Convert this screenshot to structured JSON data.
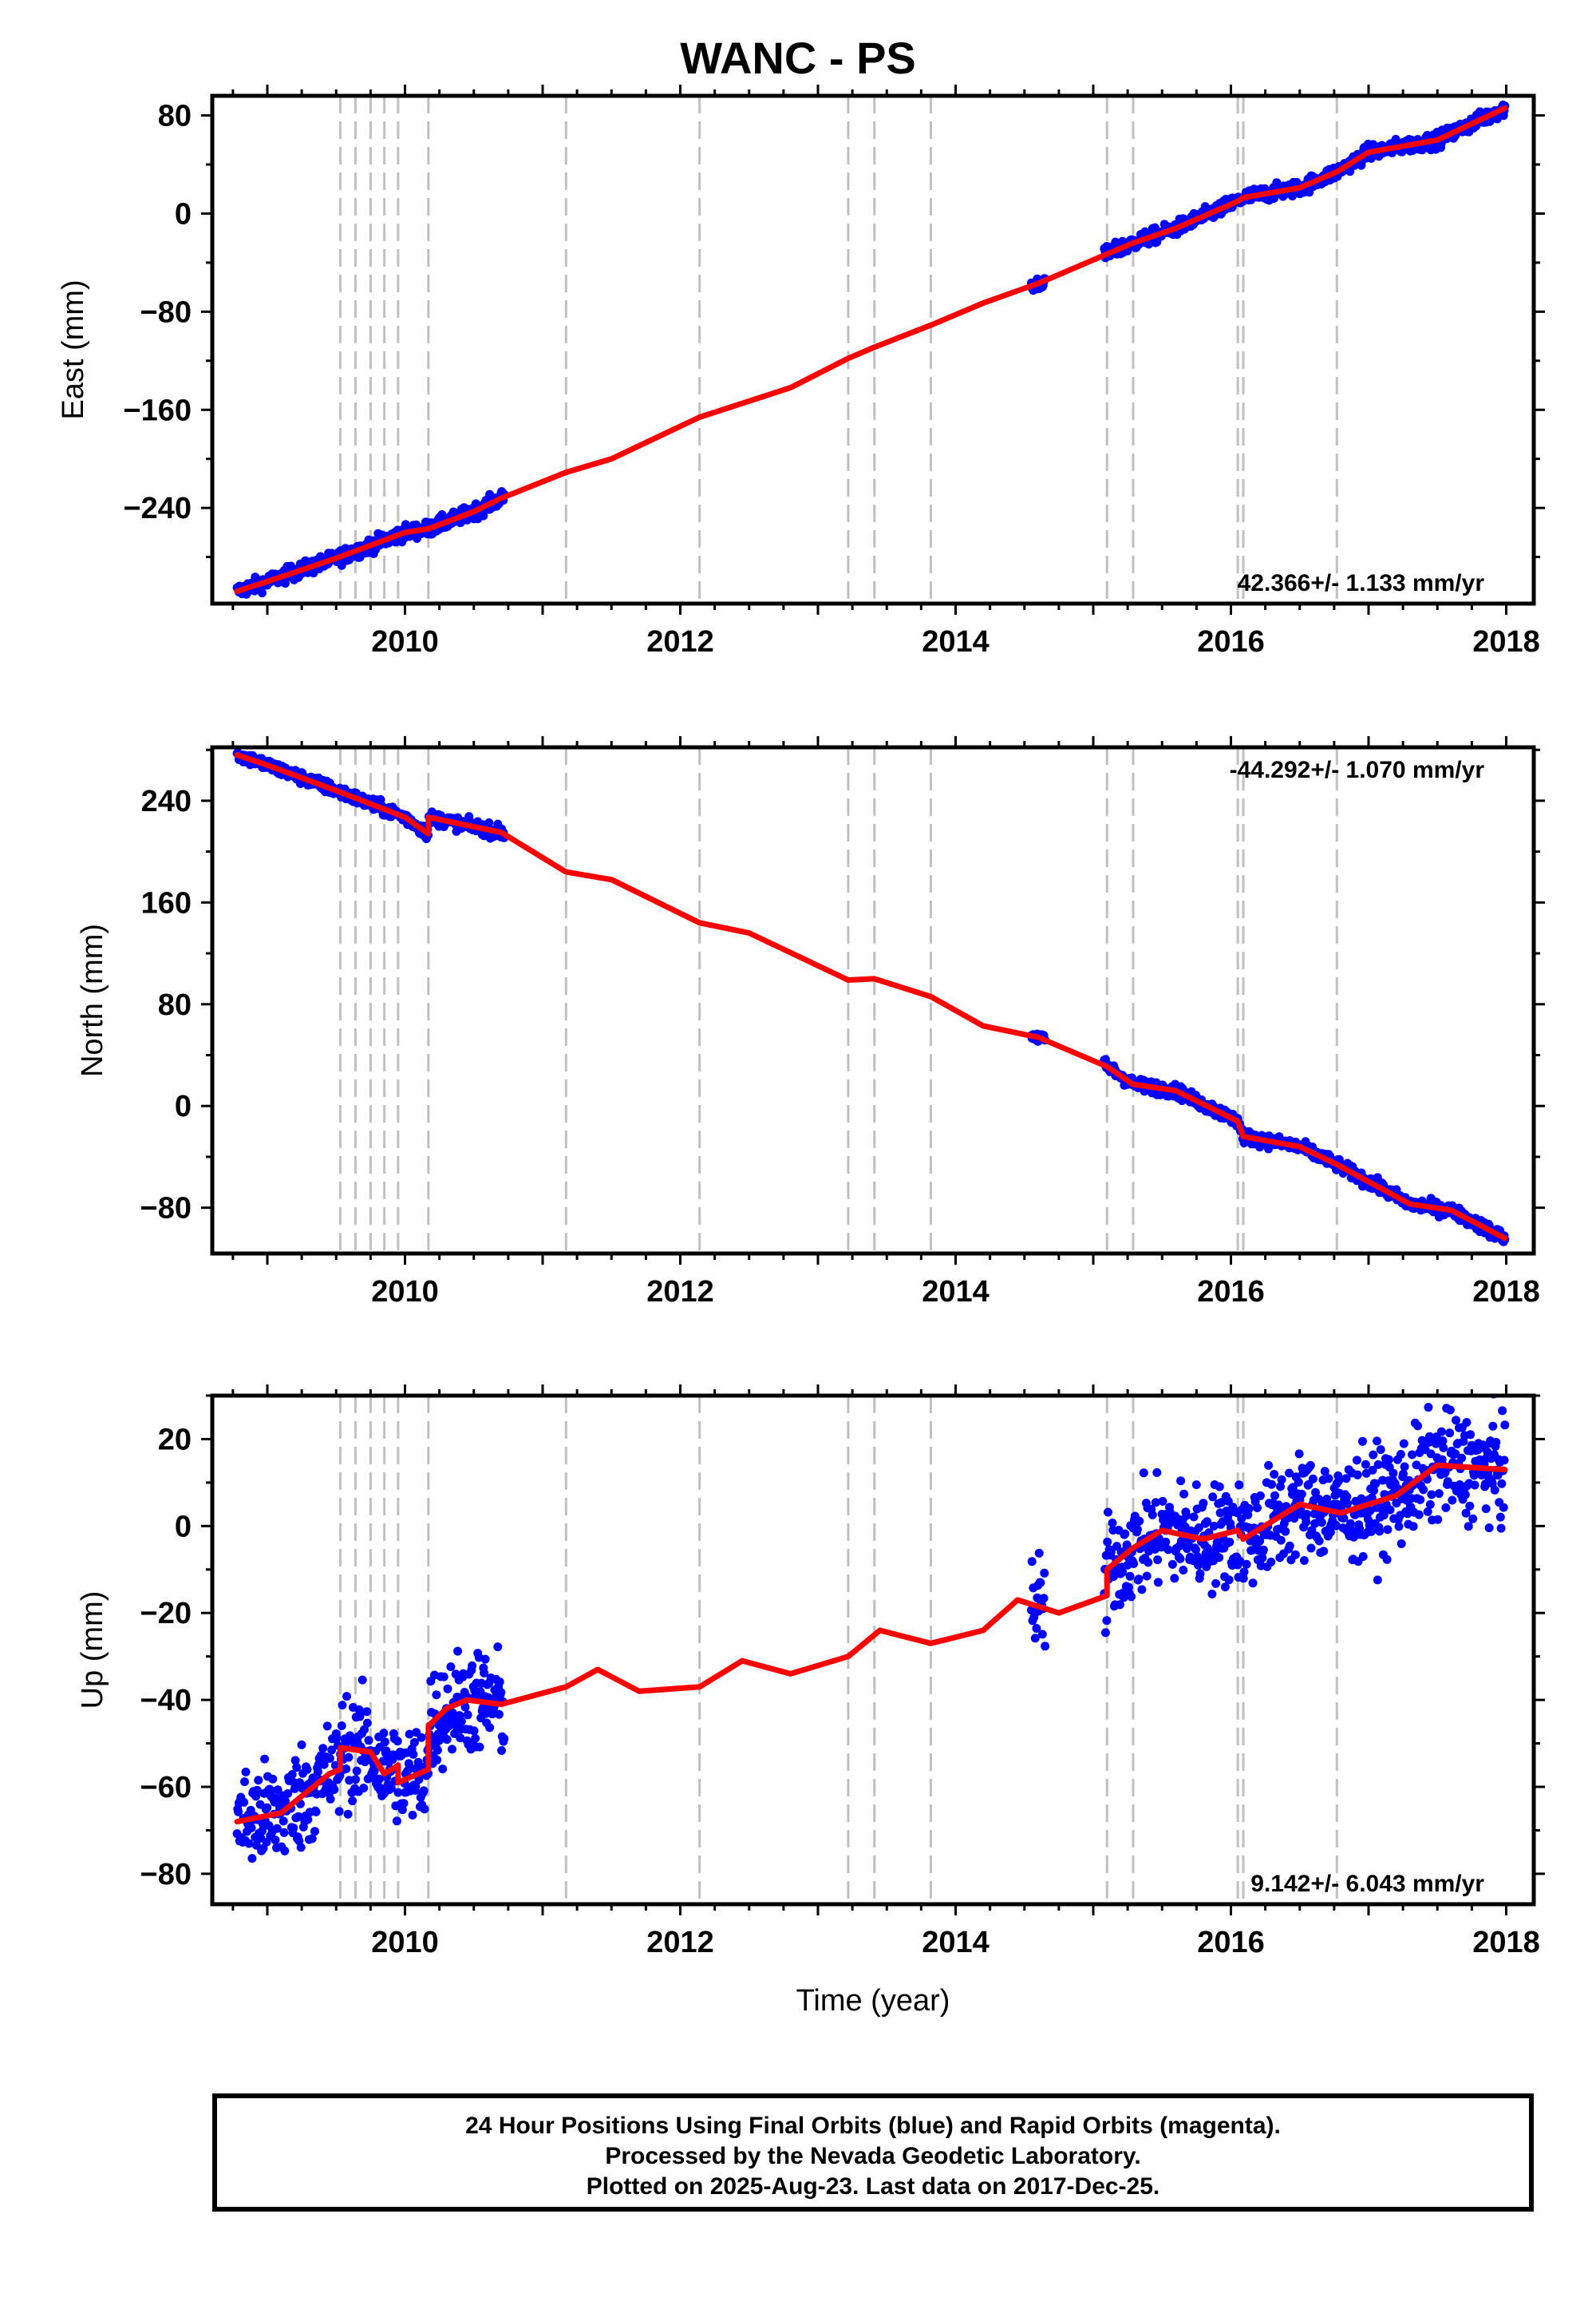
{
  "title": "WANC - PS",
  "chart_data": {
    "type": "scatter",
    "xlabel": "Time (year)",
    "xlim": [
      2008.6,
      2018.2
    ],
    "x_ticks": [
      "2010",
      "2012",
      "2014",
      "2016",
      "2018"
    ],
    "event_lines": [
      2009.53,
      2009.64,
      2009.75,
      2009.85,
      2009.95,
      2010.17,
      2011.17,
      2012.14,
      2013.22,
      2013.41,
      2013.82,
      2015.1,
      2015.29,
      2016.05,
      2016.09,
      2016.77
    ],
    "panels": [
      {
        "id": "east",
        "ylabel": "East (mm)",
        "ylim": [
          -318,
          96
        ],
        "y_ticks": [
          "80",
          "0",
          "−80",
          "−160",
          "−240"
        ],
        "rate_label": "42.366+/- 1.133 mm/yr",
        "rate_position": "bottom-right",
        "model": [
          [
            2008.78,
            -308
          ],
          [
            2009.0,
            -300
          ],
          [
            2009.5,
            -281
          ],
          [
            2010.0,
            -260
          ],
          [
            2010.17,
            -257
          ],
          [
            2010.5,
            -243
          ],
          [
            2010.7,
            -232
          ],
          [
            2011.17,
            -211
          ],
          [
            2011.5,
            -200
          ],
          [
            2012.14,
            -166
          ],
          [
            2012.8,
            -142
          ],
          [
            2013.22,
            -118
          ],
          [
            2013.41,
            -109
          ],
          [
            2013.82,
            -91
          ],
          [
            2014.2,
            -73
          ],
          [
            2014.6,
            -57
          ],
          [
            2015.1,
            -33
          ],
          [
            2015.29,
            -24
          ],
          [
            2015.6,
            -12
          ],
          [
            2016.05,
            10
          ],
          [
            2016.09,
            13
          ],
          [
            2016.5,
            21
          ],
          [
            2016.77,
            34
          ],
          [
            2017.0,
            50
          ],
          [
            2017.5,
            60
          ],
          [
            2017.99,
            86
          ]
        ],
        "scatter_segments": [
          [
            2008.78,
            2010.72
          ],
          [
            2014.55,
            2014.65
          ],
          [
            2015.08,
            2017.99
          ]
        ],
        "scatter_noise": 3
      },
      {
        "id": "north",
        "ylabel": "North (mm)",
        "ylim": [
          -116,
          282
        ],
        "y_ticks": [
          "240",
          "160",
          "80",
          "0",
          "−80"
        ],
        "rate_label": "-44.292+/- 1.070 mm/yr",
        "rate_position": "top-right",
        "model": [
          [
            2008.78,
            276
          ],
          [
            2009.0,
            268
          ],
          [
            2009.5,
            248
          ],
          [
            2010.0,
            227
          ],
          [
            2010.17,
            214
          ],
          [
            2010.17,
            227
          ],
          [
            2010.7,
            215
          ],
          [
            2011.17,
            184
          ],
          [
            2011.5,
            178
          ],
          [
            2012.14,
            144
          ],
          [
            2012.5,
            136
          ],
          [
            2013.22,
            99
          ],
          [
            2013.41,
            100
          ],
          [
            2013.82,
            86
          ],
          [
            2014.2,
            63
          ],
          [
            2014.6,
            54
          ],
          [
            2015.1,
            31
          ],
          [
            2015.29,
            17
          ],
          [
            2015.6,
            12
          ],
          [
            2016.05,
            -12
          ],
          [
            2016.09,
            -24
          ],
          [
            2016.5,
            -32
          ],
          [
            2016.77,
            -46
          ],
          [
            2017.3,
            -77
          ],
          [
            2017.6,
            -82
          ],
          [
            2017.99,
            -104
          ]
        ],
        "scatter_segments": [
          [
            2008.78,
            2010.72
          ],
          [
            2014.55,
            2014.65
          ],
          [
            2015.08,
            2017.99
          ]
        ],
        "scatter_noise": 2.5
      },
      {
        "id": "up",
        "ylabel": "Up (mm)",
        "ylim": [
          -87,
          30
        ],
        "y_ticks": [
          "20",
          "0",
          "−20",
          "−40",
          "−60",
          "−80"
        ],
        "rate_label": "9.142+/- 6.043 mm/yr",
        "rate_position": "bottom-right",
        "model": [
          [
            2008.78,
            -68
          ],
          [
            2009.1,
            -66
          ],
          [
            2009.45,
            -57
          ],
          [
            2009.53,
            -56
          ],
          [
            2009.53,
            -51
          ],
          [
            2009.75,
            -52
          ],
          [
            2009.85,
            -57
          ],
          [
            2009.95,
            -55
          ],
          [
            2009.95,
            -59
          ],
          [
            2010.17,
            -56
          ],
          [
            2010.17,
            -46
          ],
          [
            2010.3,
            -42
          ],
          [
            2010.45,
            -40
          ],
          [
            2010.7,
            -41
          ],
          [
            2011.17,
            -37
          ],
          [
            2011.4,
            -33
          ],
          [
            2011.7,
            -38
          ],
          [
            2012.14,
            -37
          ],
          [
            2012.45,
            -31
          ],
          [
            2012.8,
            -34
          ],
          [
            2013.22,
            -30
          ],
          [
            2013.45,
            -24
          ],
          [
            2013.82,
            -27
          ],
          [
            2014.2,
            -24
          ],
          [
            2014.45,
            -17
          ],
          [
            2014.75,
            -20
          ],
          [
            2015.1,
            -16
          ],
          [
            2015.1,
            -10
          ],
          [
            2015.29,
            -5
          ],
          [
            2015.5,
            -1
          ],
          [
            2015.8,
            -3
          ],
          [
            2016.05,
            -1
          ],
          [
            2016.09,
            -3
          ],
          [
            2016.5,
            5
          ],
          [
            2016.8,
            3
          ],
          [
            2017.2,
            7
          ],
          [
            2017.5,
            14
          ],
          [
            2017.99,
            13
          ]
        ],
        "scatter_segments": [
          [
            2008.78,
            2010.72
          ],
          [
            2014.55,
            2014.65
          ],
          [
            2015.08,
            2017.99
          ]
        ],
        "scatter_noise": 6
      }
    ],
    "marker_colors": {
      "final": "#0000ff",
      "rapid": "#ff00ff",
      "model": "#ff0000",
      "event": "#c0c0c0"
    }
  },
  "caption": {
    "line1": "24 Hour Positions Using Final Orbits (blue) and Rapid Orbits (magenta).",
    "line2": "Processed by the Nevada Geodetic Laboratory.",
    "line3": "Plotted on 2025-Aug-23. Last data on 2017-Dec-25."
  }
}
